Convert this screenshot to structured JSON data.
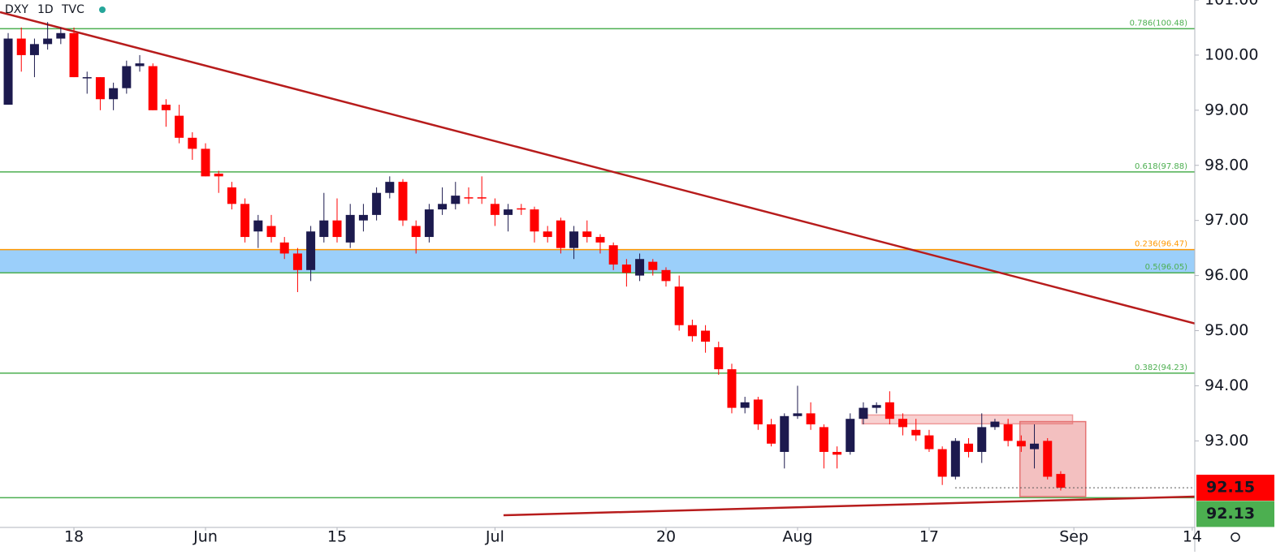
{
  "chart_data": {
    "type": "candlestick",
    "symbol": "DXY",
    "interval": "1D",
    "source": "TVC",
    "up_color": "#1c1a4e",
    "down_color": "#ff0000",
    "x": [
      0,
      1,
      2,
      3,
      4,
      5,
      6,
      7,
      8,
      9,
      10,
      11,
      12,
      13,
      14,
      15,
      16,
      17,
      18,
      19,
      20,
      21,
      22,
      23,
      24,
      25,
      26,
      27,
      28,
      29,
      30,
      31,
      32,
      33,
      34,
      35,
      36,
      37,
      38,
      39,
      40,
      41,
      42,
      43,
      44,
      45,
      46,
      47,
      48,
      49,
      50,
      51,
      52,
      53,
      54,
      55,
      56,
      57,
      58,
      59,
      60,
      61,
      62,
      63,
      64,
      65,
      66,
      67,
      68,
      69,
      70,
      71,
      72,
      73,
      74,
      75,
      76,
      77,
      78,
      79,
      80
    ],
    "open": [
      99.1,
      100.3,
      100.0,
      100.2,
      100.3,
      100.4,
      99.6,
      99.6,
      99.2,
      99.4,
      99.8,
      99.8,
      99.1,
      98.9,
      98.5,
      98.3,
      97.85,
      97.6,
      97.3,
      96.8,
      96.9,
      96.6,
      96.4,
      96.1,
      96.7,
      97.0,
      96.6,
      97.0,
      97.1,
      97.5,
      97.7,
      96.9,
      96.7,
      97.2,
      97.3,
      97.42,
      97.42,
      97.3,
      97.1,
      97.22,
      97.2,
      96.8,
      97.0,
      96.5,
      96.8,
      96.7,
      96.55,
      96.2,
      96.0,
      96.25,
      96.1,
      95.8,
      95.1,
      95.0,
      94.7,
      94.3,
      93.6,
      93.75,
      93.3,
      92.8,
      93.45,
      93.5,
      93.25,
      92.8,
      92.8,
      93.4,
      93.6,
      93.7,
      93.4,
      93.2,
      93.1,
      92.85,
      92.35,
      92.95,
      92.8,
      93.25,
      93.3,
      93.0,
      92.85,
      93.0,
      92.4
    ],
    "high": [
      100.4,
      100.5,
      100.3,
      100.6,
      100.5,
      100.5,
      99.7,
      99.6,
      99.5,
      99.9,
      100.0,
      99.85,
      99.2,
      99.1,
      98.6,
      98.4,
      97.9,
      97.7,
      97.4,
      97.1,
      97.1,
      96.7,
      96.5,
      96.9,
      97.5,
      97.4,
      97.3,
      97.3,
      97.6,
      97.8,
      97.75,
      97.0,
      97.3,
      97.6,
      97.7,
      97.6,
      97.8,
      97.4,
      97.3,
      97.3,
      97.25,
      96.9,
      97.05,
      96.9,
      97.0,
      96.75,
      96.6,
      96.3,
      96.4,
      96.3,
      96.15,
      96.0,
      95.2,
      95.1,
      94.8,
      94.4,
      93.8,
      93.8,
      93.4,
      93.5,
      94.0,
      93.7,
      93.3,
      92.9,
      93.5,
      93.7,
      93.7,
      93.9,
      93.5,
      93.4,
      93.2,
      92.9,
      93.05,
      93.05,
      93.5,
      93.4,
      93.4,
      93.1,
      93.3,
      93.05,
      92.45
    ],
    "low": [
      99.1,
      99.7,
      99.6,
      100.1,
      100.2,
      99.6,
      99.3,
      99.0,
      99.0,
      99.3,
      99.7,
      99.0,
      98.7,
      98.4,
      98.1,
      97.8,
      97.5,
      97.2,
      96.6,
      96.5,
      96.6,
      96.3,
      95.7,
      95.9,
      96.6,
      96.6,
      96.5,
      96.8,
      97.0,
      97.4,
      96.9,
      96.4,
      96.6,
      97.1,
      97.2,
      97.3,
      97.3,
      96.9,
      96.8,
      97.1,
      96.6,
      96.6,
      96.4,
      96.3,
      96.6,
      96.4,
      96.1,
      95.8,
      95.9,
      96.0,
      95.8,
      95.0,
      94.8,
      94.6,
      94.2,
      93.5,
      93.5,
      93.2,
      92.9,
      92.5,
      93.4,
      93.2,
      92.5,
      92.5,
      92.75,
      93.3,
      93.5,
      93.3,
      93.1,
      93.0,
      92.8,
      92.2,
      92.3,
      92.7,
      92.6,
      93.2,
      92.9,
      92.8,
      92.5,
      92.3,
      92.1
    ],
    "close": [
      100.3,
      100.0,
      100.2,
      100.3,
      100.4,
      99.6,
      99.6,
      99.2,
      99.4,
      99.8,
      99.85,
      99.0,
      99.0,
      98.5,
      98.3,
      97.8,
      97.8,
      97.3,
      96.7,
      97.0,
      96.7,
      96.4,
      96.1,
      96.8,
      97.0,
      96.7,
      97.1,
      97.1,
      97.5,
      97.7,
      97.0,
      96.7,
      97.2,
      97.3,
      97.45,
      97.4,
      97.4,
      97.1,
      97.2,
      97.2,
      96.8,
      96.7,
      96.5,
      96.8,
      96.7,
      96.6,
      96.2,
      96.05,
      96.3,
      96.1,
      95.9,
      95.1,
      94.9,
      94.8,
      94.3,
      93.6,
      93.7,
      93.3,
      92.95,
      93.45,
      93.5,
      93.3,
      92.8,
      92.75,
      93.4,
      93.6,
      93.65,
      93.4,
      93.25,
      93.1,
      92.85,
      92.35,
      93.0,
      92.8,
      93.25,
      93.35,
      93.0,
      92.9,
      92.95,
      92.35,
      92.15
    ],
    "xlim": [
      -0.62,
      90.19
    ],
    "xticks": [
      {
        "value": 5,
        "label": "18"
      },
      {
        "value": 15,
        "label": "Jun"
      },
      {
        "value": 25,
        "label": "15"
      },
      {
        "value": 37,
        "label": "Jul"
      },
      {
        "value": 50,
        "label": "20"
      },
      {
        "value": 60,
        "label": "Aug"
      },
      {
        "value": 70,
        "label": "17"
      },
      {
        "value": 81,
        "label": "Sep"
      },
      {
        "value": 90,
        "label": "14"
      }
    ],
    "ylim": [
      91.43,
      101.0
    ],
    "yticks": [
      {
        "value": 101,
        "label": "101.00"
      },
      {
        "value": 100,
        "label": "100.00"
      },
      {
        "value": 99,
        "label": "99.00"
      },
      {
        "value": 98,
        "label": "98.00"
      },
      {
        "value": 97,
        "label": "97.00"
      },
      {
        "value": 96,
        "label": "96.00"
      },
      {
        "value": 95,
        "label": "95.00"
      },
      {
        "value": 94,
        "label": "94.00"
      },
      {
        "value": 93,
        "label": "93.00"
      }
    ],
    "levels": [
      {
        "value": 100.48,
        "label": "0.786(100.48)",
        "color": "#4caf50"
      },
      {
        "value": 97.88,
        "label": "0.618(97.88)",
        "color": "#4caf50"
      },
      {
        "value": 96.47,
        "label": "0.236(96.47)",
        "color": "#ff9800"
      },
      {
        "value": 96.05,
        "label": "0.5(96.05)",
        "color": "#4caf50"
      },
      {
        "value": 94.23,
        "label": "0.382(94.23)",
        "color": "#4caf50"
      },
      {
        "value": 91.97,
        "color": "#4caf50"
      }
    ],
    "zone": {
      "from": 96.05,
      "to": 96.47,
      "color": "#90caf9"
    },
    "trendlines": [
      {
        "from": [
          -0.62,
          100.78
        ],
        "to": [
          90.19,
          95.13
        ],
        "color": "#b71c1c"
      },
      {
        "from": [
          37.65,
          91.65
        ],
        "to": [
          90.19,
          91.99
        ],
        "color": "#b71c1c"
      }
    ],
    "boxes": [
      {
        "x": [
          64.9,
          80.9
        ],
        "y": [
          93.31,
          93.47
        ],
        "color": "#ef9a9a"
      },
      {
        "x": [
          76.9,
          81.9
        ],
        "y": [
          91.99,
          93.35
        ],
        "color": "#e57373"
      }
    ],
    "price_labels": [
      {
        "value": 92.15,
        "label": "92.15",
        "color": "#ff0000"
      },
      {
        "value": 92.13,
        "label": "92.13",
        "color": "#4caf50"
      }
    ]
  }
}
